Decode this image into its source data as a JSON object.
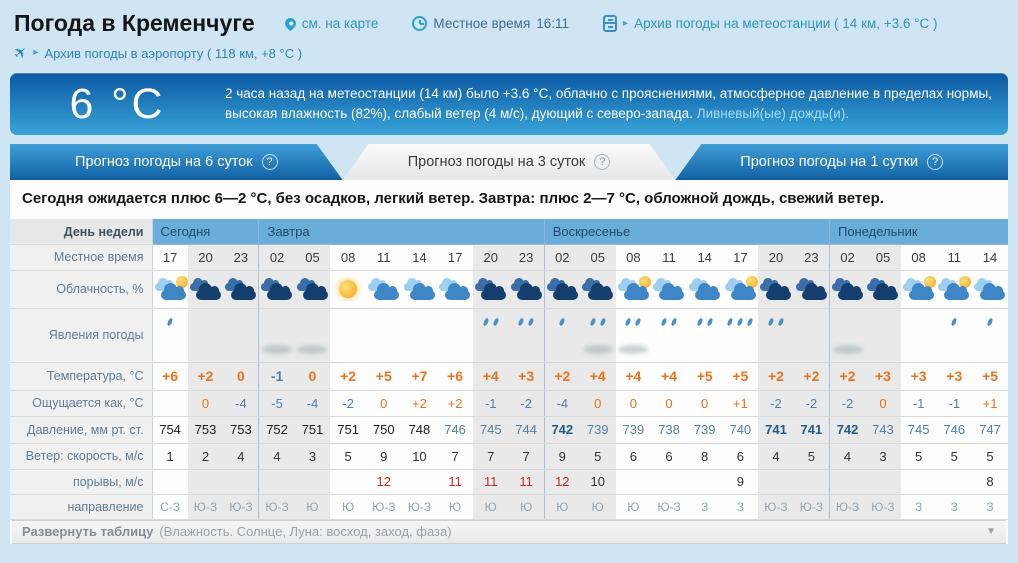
{
  "page": {
    "title": "Погода в Кременчуге",
    "map_link": "см. на карте",
    "local_time_label": "Местное время",
    "local_time_value": "16:11",
    "station_archive_link": "Архив погоды на метеостанции ( 14 км, +3.6 °C )",
    "airport_archive_link": "Архив погоды в аэропорту ( 118 км, +8 °C )"
  },
  "banner": {
    "temperature": "6 °C",
    "text_main": "2 часа назад на метеостанции (14 км) было +3.6 °C, облачно с прояснениями, атмосферное давление в пределах нормы, высокая влажность (82%), слабый ветер (4 м/с), дующий с северо-запада.",
    "text_secondary": "Ливневый(ые) дождь(и)."
  },
  "tabs": [
    {
      "label": "Прогноз погоды на 6 суток",
      "active": false
    },
    {
      "label": "Прогноз погоды на 3 суток",
      "active": true
    },
    {
      "label": "Прогноз погоды на 1 сутки",
      "active": false
    }
  ],
  "summary": "Сегодня ожидается плюс 6—2 °С, без осадков, легкий ветер. Завтра: плюс 2—7 °С, обложной дождь, свежий ветер.",
  "table": {
    "row_labels": {
      "day": "День недели",
      "time": "Местное время",
      "clouds": "Облачность, %",
      "phenomena": "Явления погоды",
      "temp": "Температура, °C",
      "feels": "Ощущается как, °C",
      "pressure": "Давление, мм рт. ст.",
      "wind_speed": "Ветер: скорость, м/с",
      "gusts": "порывы, м/с",
      "direction": "направление"
    },
    "days": [
      {
        "label": "Сегодня",
        "cols": 3
      },
      {
        "label": "Завтра",
        "cols": 8
      },
      {
        "label": "Воскресенье",
        "cols": 8
      },
      {
        "label": "Понедельник",
        "cols": 5
      }
    ],
    "times": [
      "17",
      "20",
      "23",
      "02",
      "05",
      "08",
      "11",
      "14",
      "17",
      "20",
      "23",
      "02",
      "05",
      "08",
      "11",
      "14",
      "17",
      "20",
      "23",
      "02",
      "05",
      "08",
      "11",
      "14"
    ],
    "night_times": [
      "20",
      "23",
      "02",
      "05"
    ],
    "cloud_icons": [
      "cloud-sun",
      "clouds-night",
      "clouds-night",
      "clouds-night",
      "clouds-night",
      "sun",
      "clouds",
      "clouds",
      "clouds",
      "clouds-night",
      "clouds-dark",
      "clouds-dark",
      "clouds-dark",
      "cloud-sun",
      "clouds",
      "clouds",
      "cloud-sun",
      "clouds-night",
      "clouds-dark",
      "clouds-dark",
      "clouds-dark",
      "cloud-sun",
      "cloud-sun",
      "clouds"
    ],
    "precip_drops": [
      1,
      0,
      0,
      0,
      0,
      0,
      0,
      0,
      0,
      2,
      2,
      1,
      2,
      2,
      2,
      2,
      3,
      2,
      0,
      0,
      0,
      0,
      1,
      1
    ],
    "smudge_columns": [
      3,
      4,
      12,
      13,
      19
    ],
    "temperature": [
      "+6",
      "+2",
      "0",
      "-1",
      "0",
      "+2",
      "+5",
      "+7",
      "+6",
      "+4",
      "+3",
      "+2",
      "+4",
      "+4",
      "+4",
      "+5",
      "+5",
      "+2",
      "+2",
      "+2",
      "+3",
      "+3",
      "+3",
      "+5"
    ],
    "feels_like": [
      "",
      "0",
      "-4",
      "-5",
      "-4",
      "-2",
      "0",
      "+2",
      "+2",
      "-1",
      "-2",
      "-4",
      "0",
      "0",
      "0",
      "0",
      "+1",
      "-2",
      "-2",
      "-2",
      "0",
      "-1",
      "-1",
      "+1"
    ],
    "pressure": {
      "values": [
        "754",
        "753",
        "753",
        "752",
        "751",
        "751",
        "750",
        "748",
        "746",
        "745",
        "744",
        "742",
        "739",
        "739",
        "738",
        "739",
        "740",
        "741",
        "741",
        "742",
        "743",
        "745",
        "746",
        "747"
      ],
      "styles": [
        "k",
        "k",
        "k",
        "k",
        "k",
        "k",
        "k",
        "k",
        "b",
        "b",
        "b",
        "nb",
        "b",
        "b",
        "b",
        "b",
        "b",
        "nb",
        "nb",
        "nb",
        "b",
        "b",
        "b",
        "b"
      ]
    },
    "wind_speed": [
      "1",
      "2",
      "4",
      "4",
      "3",
      "5",
      "9",
      "10",
      "7",
      "7",
      "7",
      "9",
      "5",
      "6",
      "6",
      "8",
      "6",
      "4",
      "5",
      "4",
      "3",
      "5",
      "5",
      "5"
    ],
    "wind_gusts": {
      "values": [
        "",
        "",
        "",
        "",
        "",
        "",
        "12",
        "",
        "11",
        "11",
        "11",
        "12",
        "10",
        "",
        "",
        "",
        "9",
        "",
        "",
        "",
        "",
        "",
        "",
        "8"
      ],
      "styles": [
        "",
        "",
        "",
        "",
        "",
        "",
        "r",
        "",
        "r",
        "r",
        "r",
        "r",
        "k",
        "",
        "",
        "",
        "k",
        "",
        "",
        "",
        "",
        "",
        "",
        "k"
      ]
    },
    "wind_dir": [
      "С-З",
      "Ю-З",
      "Ю-З",
      "Ю-З",
      "Ю",
      "Ю",
      "Ю-З",
      "Ю-З",
      "Ю",
      "Ю",
      "Ю",
      "Ю",
      "Ю",
      "Ю",
      "Ю-З",
      "З",
      "З",
      "Ю-З",
      "Ю-З",
      "Ю-З",
      "Ю-З",
      "З",
      "З",
      "З"
    ]
  },
  "footer": {
    "expand_label": "Развернуть таблицу",
    "expand_hint": "(Влажность. Солнце, Луна: восход, заход, фаза)"
  },
  "glyphs": {
    "help": "?",
    "plane": "✈",
    "chevron": "▸",
    "expand_arrow": "▼",
    "moon": "☾"
  },
  "colors": {
    "banner_top": "#0c59a2",
    "banner_bottom": "#38a3d8",
    "day_header_bg": "#6aacda",
    "night_col_bg": "#e9e9e9",
    "temp_positive": "#e8731a",
    "temp_negative": "#4b7fb9",
    "pressure_low": "#55809f",
    "pressure_bold": "#1f5c8b",
    "gust_alert": "#c92a2a"
  }
}
